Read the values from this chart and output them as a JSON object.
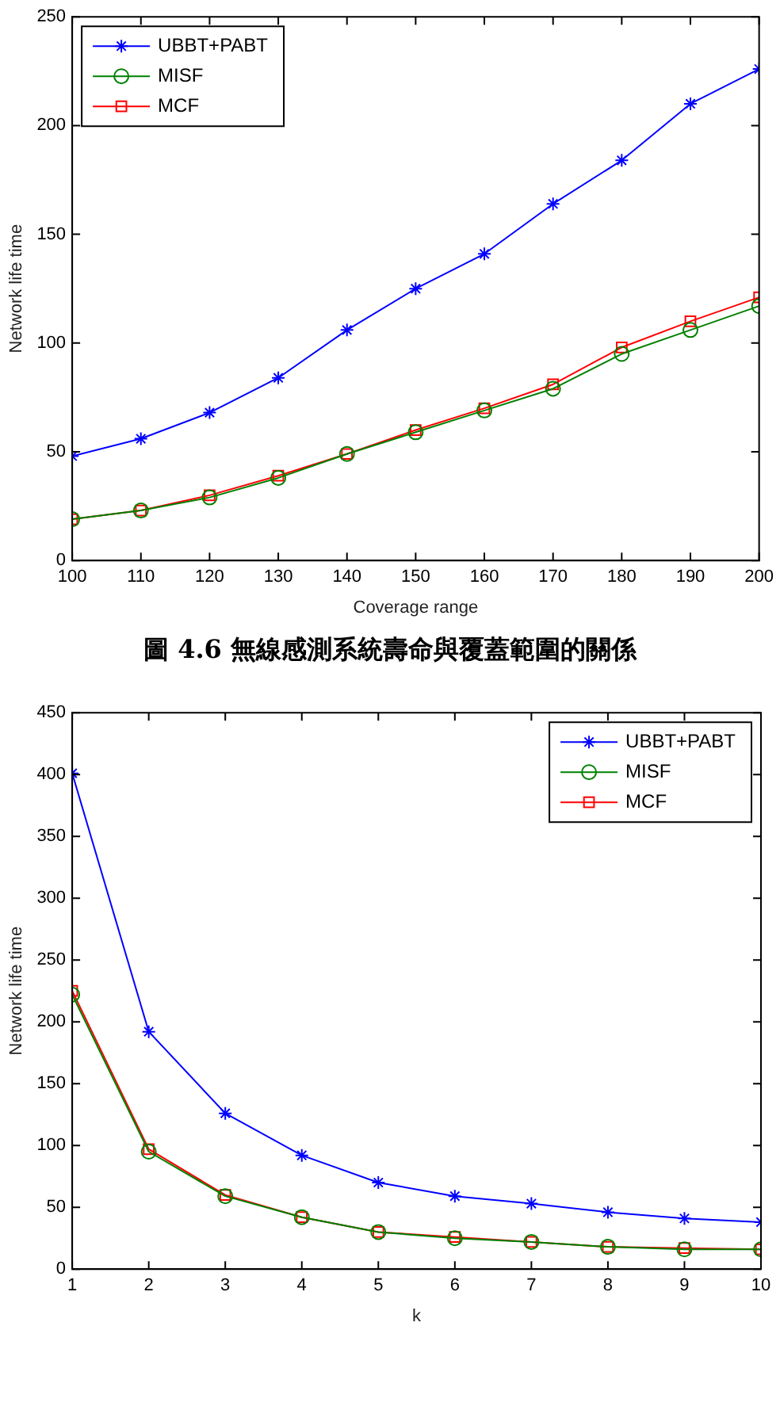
{
  "chart_data": [
    {
      "type": "line",
      "xlabel": "Coverage range",
      "ylabel": "Network life time",
      "x": [
        100,
        110,
        120,
        130,
        140,
        150,
        160,
        170,
        180,
        190,
        200
      ],
      "xlim": [
        100,
        200
      ],
      "xticks": [
        100,
        110,
        120,
        130,
        140,
        150,
        160,
        170,
        180,
        190,
        200
      ],
      "ylim": [
        0,
        250
      ],
      "yticks": [
        0,
        50,
        100,
        150,
        200,
        250
      ],
      "grid": false,
      "legend": "top left",
      "annotations": [
        "圖 4.6 無線感測系統壽命與覆蓋範圍的關係"
      ],
      "series": [
        {
          "name": "UBBT+PABT",
          "color": "#0000ff",
          "marker": "cross",
          "values": [
            48,
            56,
            68,
            84,
            106,
            125,
            141,
            164,
            184,
            210,
            226
          ]
        },
        {
          "name": "MISF",
          "color": "#008000",
          "marker": "circle",
          "values": [
            19,
            23,
            29,
            38,
            49,
            59,
            69,
            79,
            95,
            106,
            117
          ]
        },
        {
          "name": "MCF",
          "color": "#ff0000",
          "marker": "square",
          "values": [
            19,
            23,
            30,
            39,
            49,
            60,
            70,
            81,
            98,
            110,
            121
          ]
        }
      ]
    },
    {
      "type": "line",
      "xlabel": "k",
      "ylabel": "Network life time",
      "x": [
        1,
        2,
        3,
        4,
        5,
        6,
        7,
        8,
        9,
        10
      ],
      "xlim": [
        1,
        10
      ],
      "xticks": [
        1,
        2,
        3,
        4,
        5,
        6,
        7,
        8,
        9,
        10
      ],
      "ylim": [
        0,
        450
      ],
      "yticks": [
        0,
        50,
        100,
        150,
        200,
        250,
        300,
        350,
        400,
        450
      ],
      "grid": false,
      "legend": "top right",
      "series": [
        {
          "name": "UBBT+PABT",
          "color": "#0000ff",
          "marker": "cross",
          "values": [
            401,
            192,
            126,
            92,
            70,
            59,
            53,
            46,
            41,
            38
          ]
        },
        {
          "name": "MISF",
          "color": "#008000",
          "marker": "circle",
          "values": [
            222,
            95,
            59,
            42,
            30,
            25,
            22,
            18,
            16,
            16
          ]
        },
        {
          "name": "MCF",
          "color": "#ff0000",
          "marker": "square",
          "values": [
            225,
            97,
            60,
            42,
            30,
            26,
            22,
            18,
            17,
            16
          ]
        }
      ]
    }
  ]
}
